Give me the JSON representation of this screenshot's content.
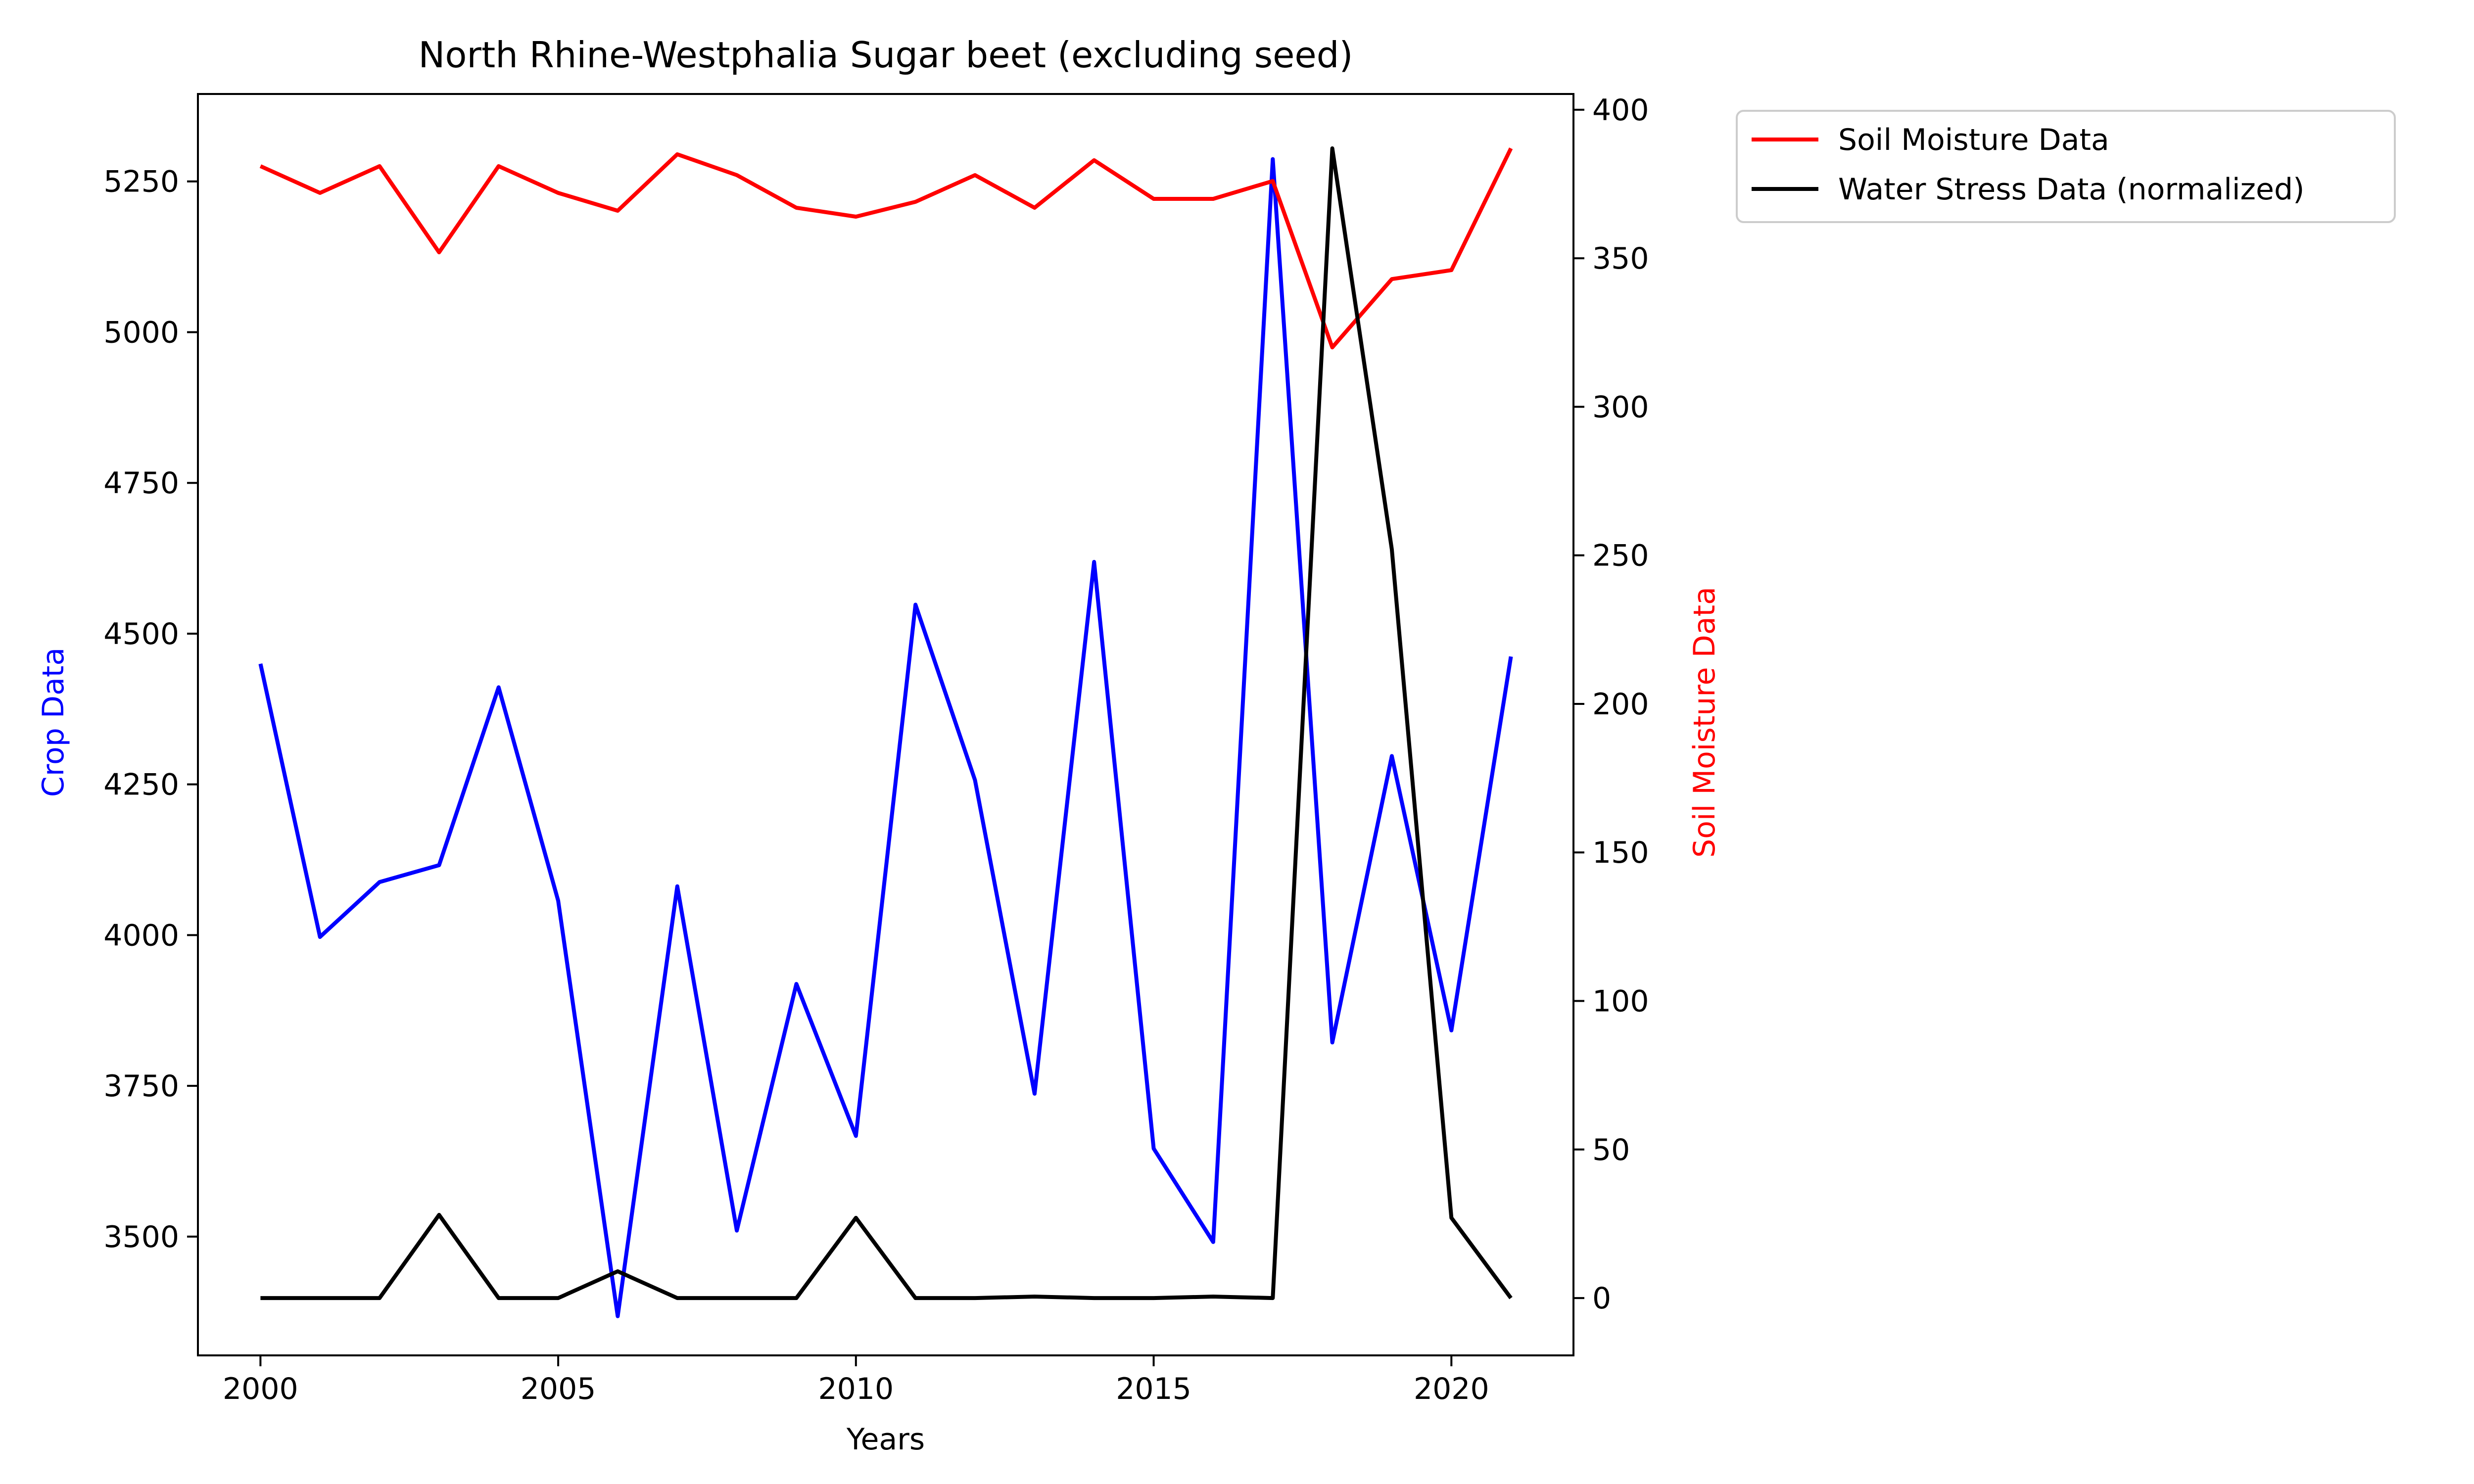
{
  "chart_data": {
    "type": "line",
    "title": "North Rhine-Westphalia Sugar beet (excluding seed)",
    "xlabel": "Years",
    "ylabel_left": "Crop Data",
    "ylabel_right": "Soil Moisture Data",
    "x": [
      2000,
      2001,
      2002,
      2003,
      2004,
      2005,
      2006,
      2007,
      2008,
      2009,
      2010,
      2011,
      2012,
      2013,
      2014,
      2015,
      2016,
      2017,
      2018,
      2019,
      2020,
      2021
    ],
    "xlim": [
      1998.95,
      2022.05
    ],
    "x_ticks": [
      "2000",
      "2005",
      "2010",
      "2015",
      "2020"
    ],
    "ylim_left": [
      3303,
      5395
    ],
    "y_ticks_left": [
      "3500",
      "3750",
      "4000",
      "4250",
      "4500",
      "4750",
      "5000",
      "5250"
    ],
    "ylim_right": [
      -19.3,
      405.3
    ],
    "y_ticks_right": [
      "0",
      "50",
      "100",
      "150",
      "200",
      "250",
      "300",
      "350",
      "400"
    ],
    "legend_position": "outside top-right",
    "grid": false,
    "series": [
      {
        "name": "",
        "axis": "left",
        "color": "#0000ff",
        "values": [
          4450,
          3997,
          4088,
          4116,
          4411,
          4057,
          3368,
          4081,
          3510,
          3919,
          3667,
          4548,
          4257,
          3737,
          4619,
          3646,
          3491,
          5287,
          3822,
          4297,
          3842,
          4462
        ]
      },
      {
        "name": "Soil Moisture Data",
        "axis": "right",
        "color": "#ff0000",
        "values": [
          381,
          372,
          381,
          352,
          381,
          372,
          366,
          385,
          378,
          367,
          364,
          369,
          378,
          367,
          383,
          370,
          370,
          376,
          320,
          343,
          346,
          387
        ]
      },
      {
        "name": "Water Stress Data (normalized)",
        "axis": "right",
        "color": "#000000",
        "values": [
          0,
          0,
          0,
          28,
          0,
          0,
          9,
          0,
          0,
          0,
          27,
          0,
          0,
          0.5,
          0,
          0,
          0.5,
          0,
          387,
          252,
          27,
          0
        ]
      }
    ]
  }
}
